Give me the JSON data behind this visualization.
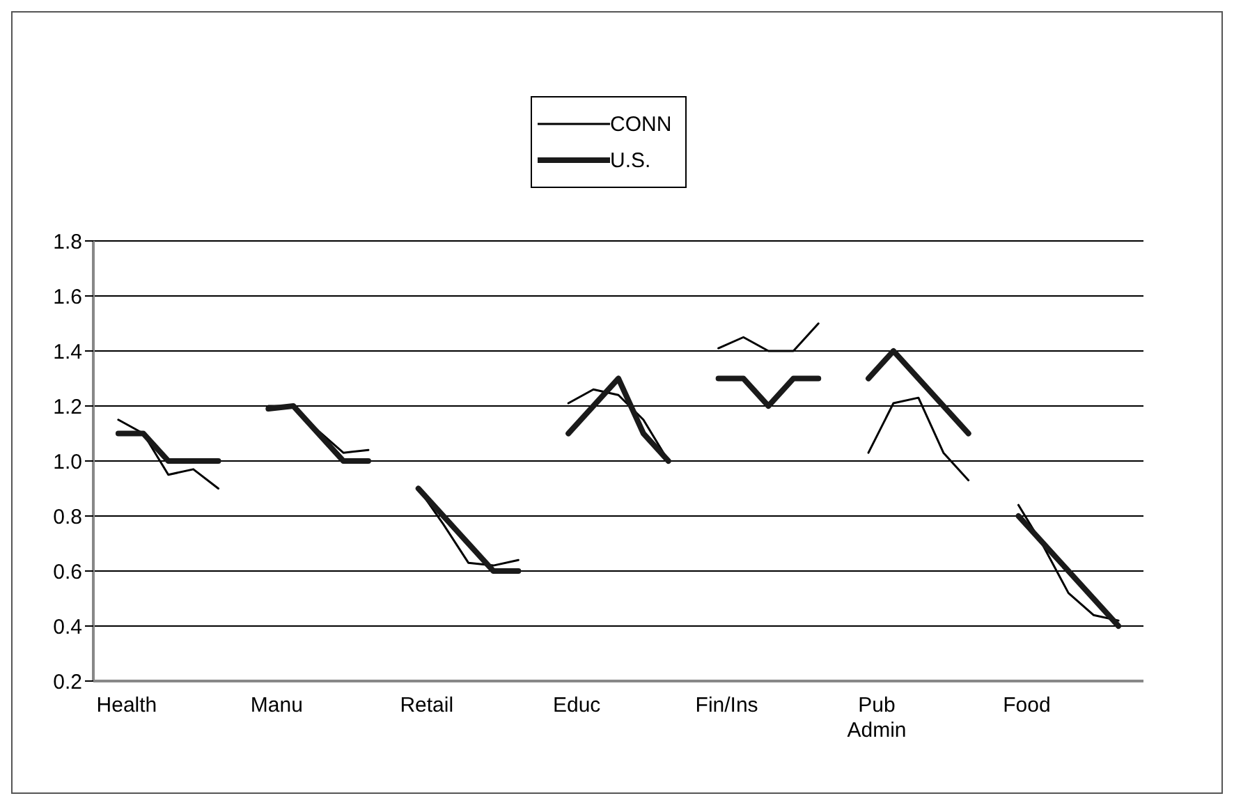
{
  "chart_data": {
    "type": "line",
    "categories": [
      "Health",
      null,
      null,
      null,
      null,
      null,
      "Manu",
      null,
      null,
      null,
      null,
      null,
      "Retail",
      null,
      null,
      null,
      null,
      null,
      "Educ",
      null,
      null,
      null,
      null,
      null,
      "Fin/Ins",
      null,
      null,
      null,
      null,
      null,
      "Pub Admin",
      null,
      null,
      null,
      null,
      null,
      "Food",
      null,
      null,
      null,
      null
    ],
    "series": [
      {
        "name": "CONN",
        "color": "#000000",
        "values": [
          1.15,
          1.1,
          0.95,
          0.97,
          0.9,
          null,
          1.2,
          1.2,
          1.11,
          1.03,
          1.04,
          null,
          0.9,
          0.77,
          0.63,
          0.62,
          0.64,
          null,
          1.21,
          1.26,
          1.24,
          1.15,
          1.0,
          null,
          1.41,
          1.45,
          1.4,
          1.4,
          1.5,
          null,
          1.03,
          1.21,
          1.23,
          1.03,
          0.93,
          null,
          0.84,
          0.69,
          0.52,
          0.44,
          0.42
        ]
      },
      {
        "name": "U.S.",
        "color": "#1a1a1a",
        "values": [
          1.1,
          1.1,
          1.0,
          1.0,
          1.0,
          null,
          1.19,
          1.2,
          1.1,
          1.0,
          1.0,
          null,
          0.9,
          0.8,
          0.7,
          0.6,
          0.6,
          null,
          1.1,
          1.2,
          1.3,
          1.1,
          1.0,
          null,
          1.3,
          1.3,
          1.2,
          1.3,
          1.3,
          null,
          1.3,
          1.4,
          1.3,
          1.2,
          1.1,
          null,
          0.8,
          0.7,
          0.6,
          0.5,
          0.4
        ]
      }
    ],
    "ylim": [
      0.2,
      1.8
    ],
    "yticks": [
      0.2,
      0.4,
      0.6,
      0.8,
      {
        "value": 1.0,
        "label": "1.0"
      },
      1.2,
      1.4,
      1.6,
      1.8
    ],
    "grid": "y",
    "legend": "top",
    "marker": "none",
    "line_style": "solid"
  }
}
